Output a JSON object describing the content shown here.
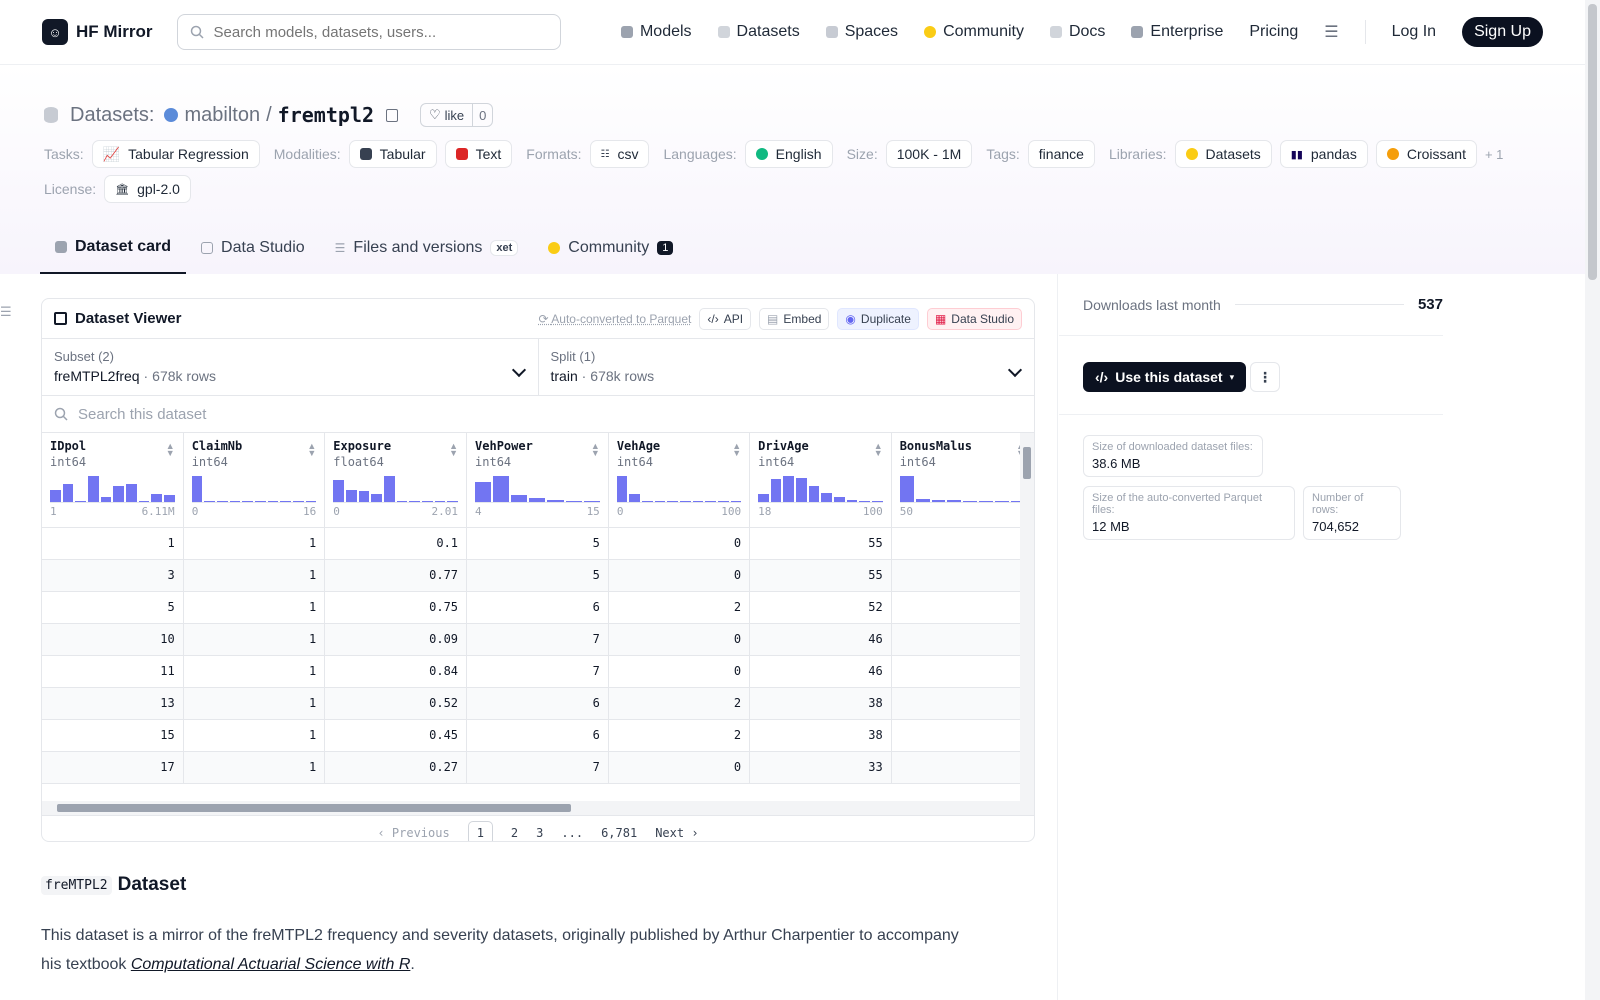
{
  "header": {
    "brand": "HF Mirror",
    "search_placeholder": "Search models, datasets, users...",
    "nav": [
      {
        "label": "Models",
        "color": "#9ca3af"
      },
      {
        "label": "Datasets",
        "color": "#d1d5db"
      },
      {
        "label": "Spaces",
        "color": "#c7cbd3"
      },
      {
        "label": "Community",
        "color": "#facc15"
      },
      {
        "label": "Docs",
        "color": "#d1d5db"
      },
      {
        "label": "Enterprise",
        "color": "#9ca3af"
      },
      {
        "label": "Pricing",
        "color": ""
      }
    ],
    "login": "Log In",
    "signup": "Sign Up"
  },
  "dataset": {
    "prefix": "Datasets:",
    "org": "mabilton",
    "slash": "/",
    "name": "fremtpl2",
    "like_label": "like",
    "like_count": "0"
  },
  "meta": {
    "tasks_label": "Tasks:",
    "task": "Tabular Regression",
    "modalities_label": "Modalities:",
    "modalities": [
      "Tabular",
      "Text"
    ],
    "formats_label": "Formats:",
    "format": "csv",
    "languages_label": "Languages:",
    "language": "English",
    "size_label": "Size:",
    "size": "100K - 1M",
    "tags_label": "Tags:",
    "tag": "finance",
    "libraries_label": "Libraries:",
    "libraries": [
      "Datasets",
      "pandas",
      "Croissant"
    ],
    "libraries_more": "+ 1",
    "license_label": "License:",
    "license": "gpl-2.0"
  },
  "tabs": {
    "card": "Dataset card",
    "studio": "Data Studio",
    "files": "Files and versions",
    "xet": "xet",
    "community": "Community",
    "community_count": "1"
  },
  "viewer": {
    "title": "Dataset Viewer",
    "auto": "Auto-converted to Parquet",
    "api": "API",
    "embed": "Embed",
    "duplicate": "Duplicate",
    "data_studio": "Data Studio",
    "subset_label": "Subset (2)",
    "subset_value": "freMTPL2freq",
    "subset_rows": "678k rows",
    "split_label": "Split (1)",
    "split_value": "train",
    "split_rows": "678k rows",
    "search_placeholder": "Search this dataset",
    "columns": [
      {
        "name": "IDpol",
        "type": "int64",
        "min": "1",
        "max": "6.11M",
        "hist": [
          0.45,
          0.65,
          0,
          0.95,
          0.2,
          0.6,
          0.65,
          0,
          0.3,
          0.25
        ]
      },
      {
        "name": "ClaimNb",
        "type": "int64",
        "min": "0",
        "max": "16",
        "hist": [
          0.95,
          0.04,
          0.03,
          0.03,
          0.03,
          0.03,
          0.03,
          0,
          0,
          0.03
        ]
      },
      {
        "name": "Exposure",
        "type": "float64",
        "min": "0",
        "max": "2.01",
        "hist": [
          0.8,
          0.45,
          0.4,
          0.3,
          0.95,
          0.03,
          0.03,
          0.03,
          0.03,
          0.03
        ]
      },
      {
        "name": "VehPower",
        "type": "int64",
        "min": "4",
        "max": "15",
        "hist": [
          0.75,
          0.95,
          0.25,
          0.15,
          0.08,
          0.05,
          0.04
        ]
      },
      {
        "name": "VehAge",
        "type": "int64",
        "min": "0",
        "max": "100",
        "hist": [
          0.95,
          0.3,
          0.04,
          0.04,
          0.03,
          0.03,
          0.03,
          0.02,
          0,
          0.02
        ]
      },
      {
        "name": "DrivAge",
        "type": "int64",
        "min": "18",
        "max": "100",
        "hist": [
          0.3,
          0.85,
          0.95,
          0.9,
          0.6,
          0.35,
          0.2,
          0.08,
          0.04,
          0.03
        ]
      },
      {
        "name": "BonusMalus",
        "type": "int64",
        "min": "50",
        "max": "",
        "hist": [
          0.95,
          0.12,
          0.08,
          0.06,
          0.05,
          0.04,
          0.03,
          0.03
        ]
      }
    ],
    "rows": [
      [
        "1",
        "1",
        "0.1",
        "5",
        "0",
        "55",
        ""
      ],
      [
        "3",
        "1",
        "0.77",
        "5",
        "0",
        "55",
        ""
      ],
      [
        "5",
        "1",
        "0.75",
        "6",
        "2",
        "52",
        ""
      ],
      [
        "10",
        "1",
        "0.09",
        "7",
        "0",
        "46",
        ""
      ],
      [
        "11",
        "1",
        "0.84",
        "7",
        "0",
        "46",
        ""
      ],
      [
        "13",
        "1",
        "0.52",
        "6",
        "2",
        "38",
        ""
      ],
      [
        "15",
        "1",
        "0.45",
        "6",
        "2",
        "38",
        ""
      ],
      [
        "17",
        "1",
        "0.27",
        "7",
        "0",
        "33",
        ""
      ]
    ],
    "pager": {
      "prev": "Previous",
      "pages": [
        "1",
        "2",
        "3",
        "...",
        "6,781"
      ],
      "next": "Next"
    }
  },
  "card": {
    "heading_code": "freMTPL2",
    "heading_text": "Dataset",
    "para_text": "This dataset is a mirror of the freMTPL2 frequency and severity datasets, originally published by Arthur Charpentier to accompany his textbook ",
    "para_link": "Computational Actuarial Science with R",
    "para_end": "."
  },
  "sidebar": {
    "downloads_label": "Downloads last month",
    "downloads_value": "537",
    "use_dataset": "Use this dataset",
    "stats": [
      {
        "label": "Size of downloaded dataset files:",
        "value": "38.6 MB"
      },
      {
        "label": "Size of the auto-converted Parquet files:",
        "value": "12 MB"
      },
      {
        "label": "Number of rows:",
        "value": "704,652"
      }
    ]
  }
}
